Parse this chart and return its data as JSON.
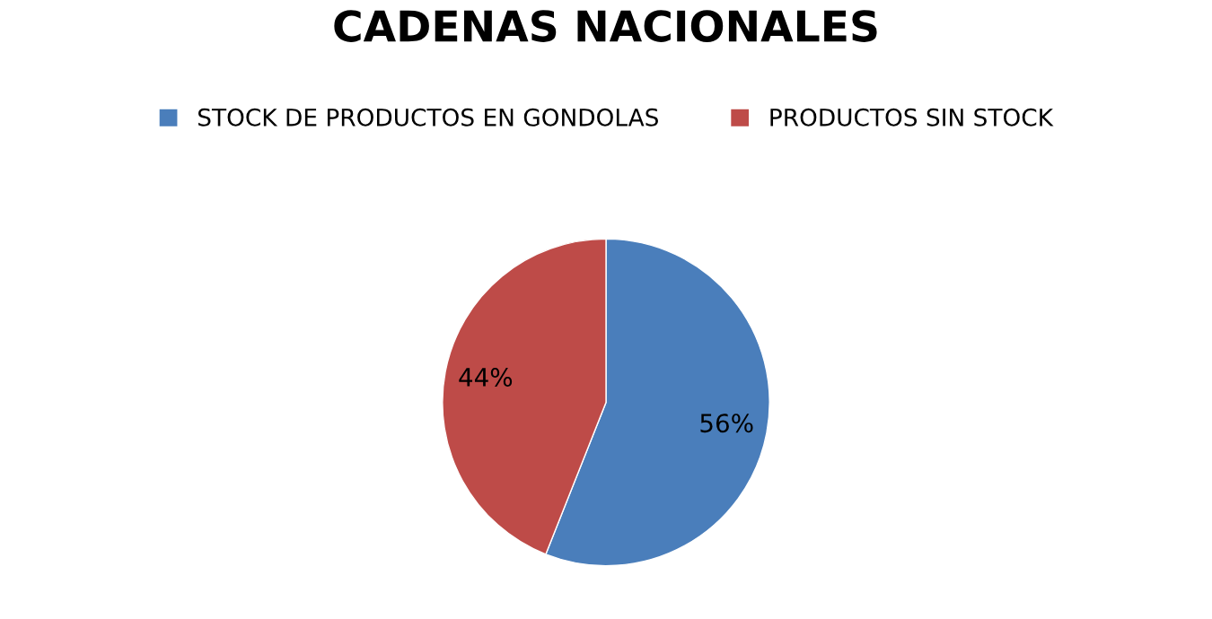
{
  "chart_data": {
    "type": "pie",
    "title": "CADENAS NACIONALES",
    "categories": [
      "STOCK DE PRODUCTOS EN GONDOLAS",
      "PRODUCTOS SIN STOCK"
    ],
    "values": [
      56,
      44
    ],
    "colors": [
      "#4a7ebb",
      "#be4b48"
    ],
    "value_labels": [
      "56%",
      "44%"
    ],
    "legend": "top"
  }
}
